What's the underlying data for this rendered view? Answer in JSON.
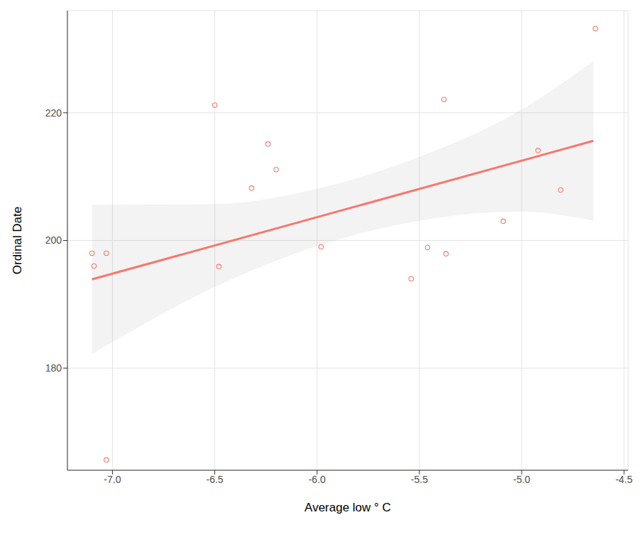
{
  "chart_data": {
    "type": "scatter",
    "x_label": "Average low ° C",
    "y_label": "Ordinal Date",
    "x": [
      -7.1,
      -7.09,
      -7.03,
      -7.03,
      -6.5,
      -6.48,
      -6.32,
      -6.24,
      -6.2,
      -5.98,
      -5.54,
      -5.46,
      -5.38,
      -5.37,
      -5.09,
      -4.92,
      -4.81,
      -4.64
    ],
    "values": [
      198,
      196,
      198,
      165.6,
      221.2,
      195.9,
      208.2,
      215.1,
      211.1,
      199,
      194,
      198.9,
      222.1,
      197.9,
      203,
      214.1,
      207.9,
      233.2
    ],
    "color": "#F8766D",
    "marker": "circle",
    "fit": {
      "x": [
        -7.1,
        -4.65
      ],
      "values": [
        193.9,
        215.6
      ]
    },
    "band": {
      "x": [
        -7.1,
        -6.5,
        -6.0,
        -5.5,
        -5.0,
        -4.65
      ],
      "lower": [
        182.2,
        192.7,
        199.1,
        203.1,
        204.5,
        203.1
      ],
      "upper": [
        205.6,
        205.7,
        208.1,
        213.1,
        220.5,
        228.1
      ]
    },
    "xlim": [
      -7.22,
      -4.48
    ],
    "ylim": [
      164,
      236
    ],
    "xticks": [
      {
        "value": -7,
        "label": "-7.0"
      },
      -6.5,
      {
        "value": -6,
        "label": "-6.0"
      },
      -5.5,
      {
        "value": -5,
        "label": "-5.0"
      },
      -4.5
    ],
    "yticks": [
      180,
      200,
      220
    ],
    "grid": true
  }
}
